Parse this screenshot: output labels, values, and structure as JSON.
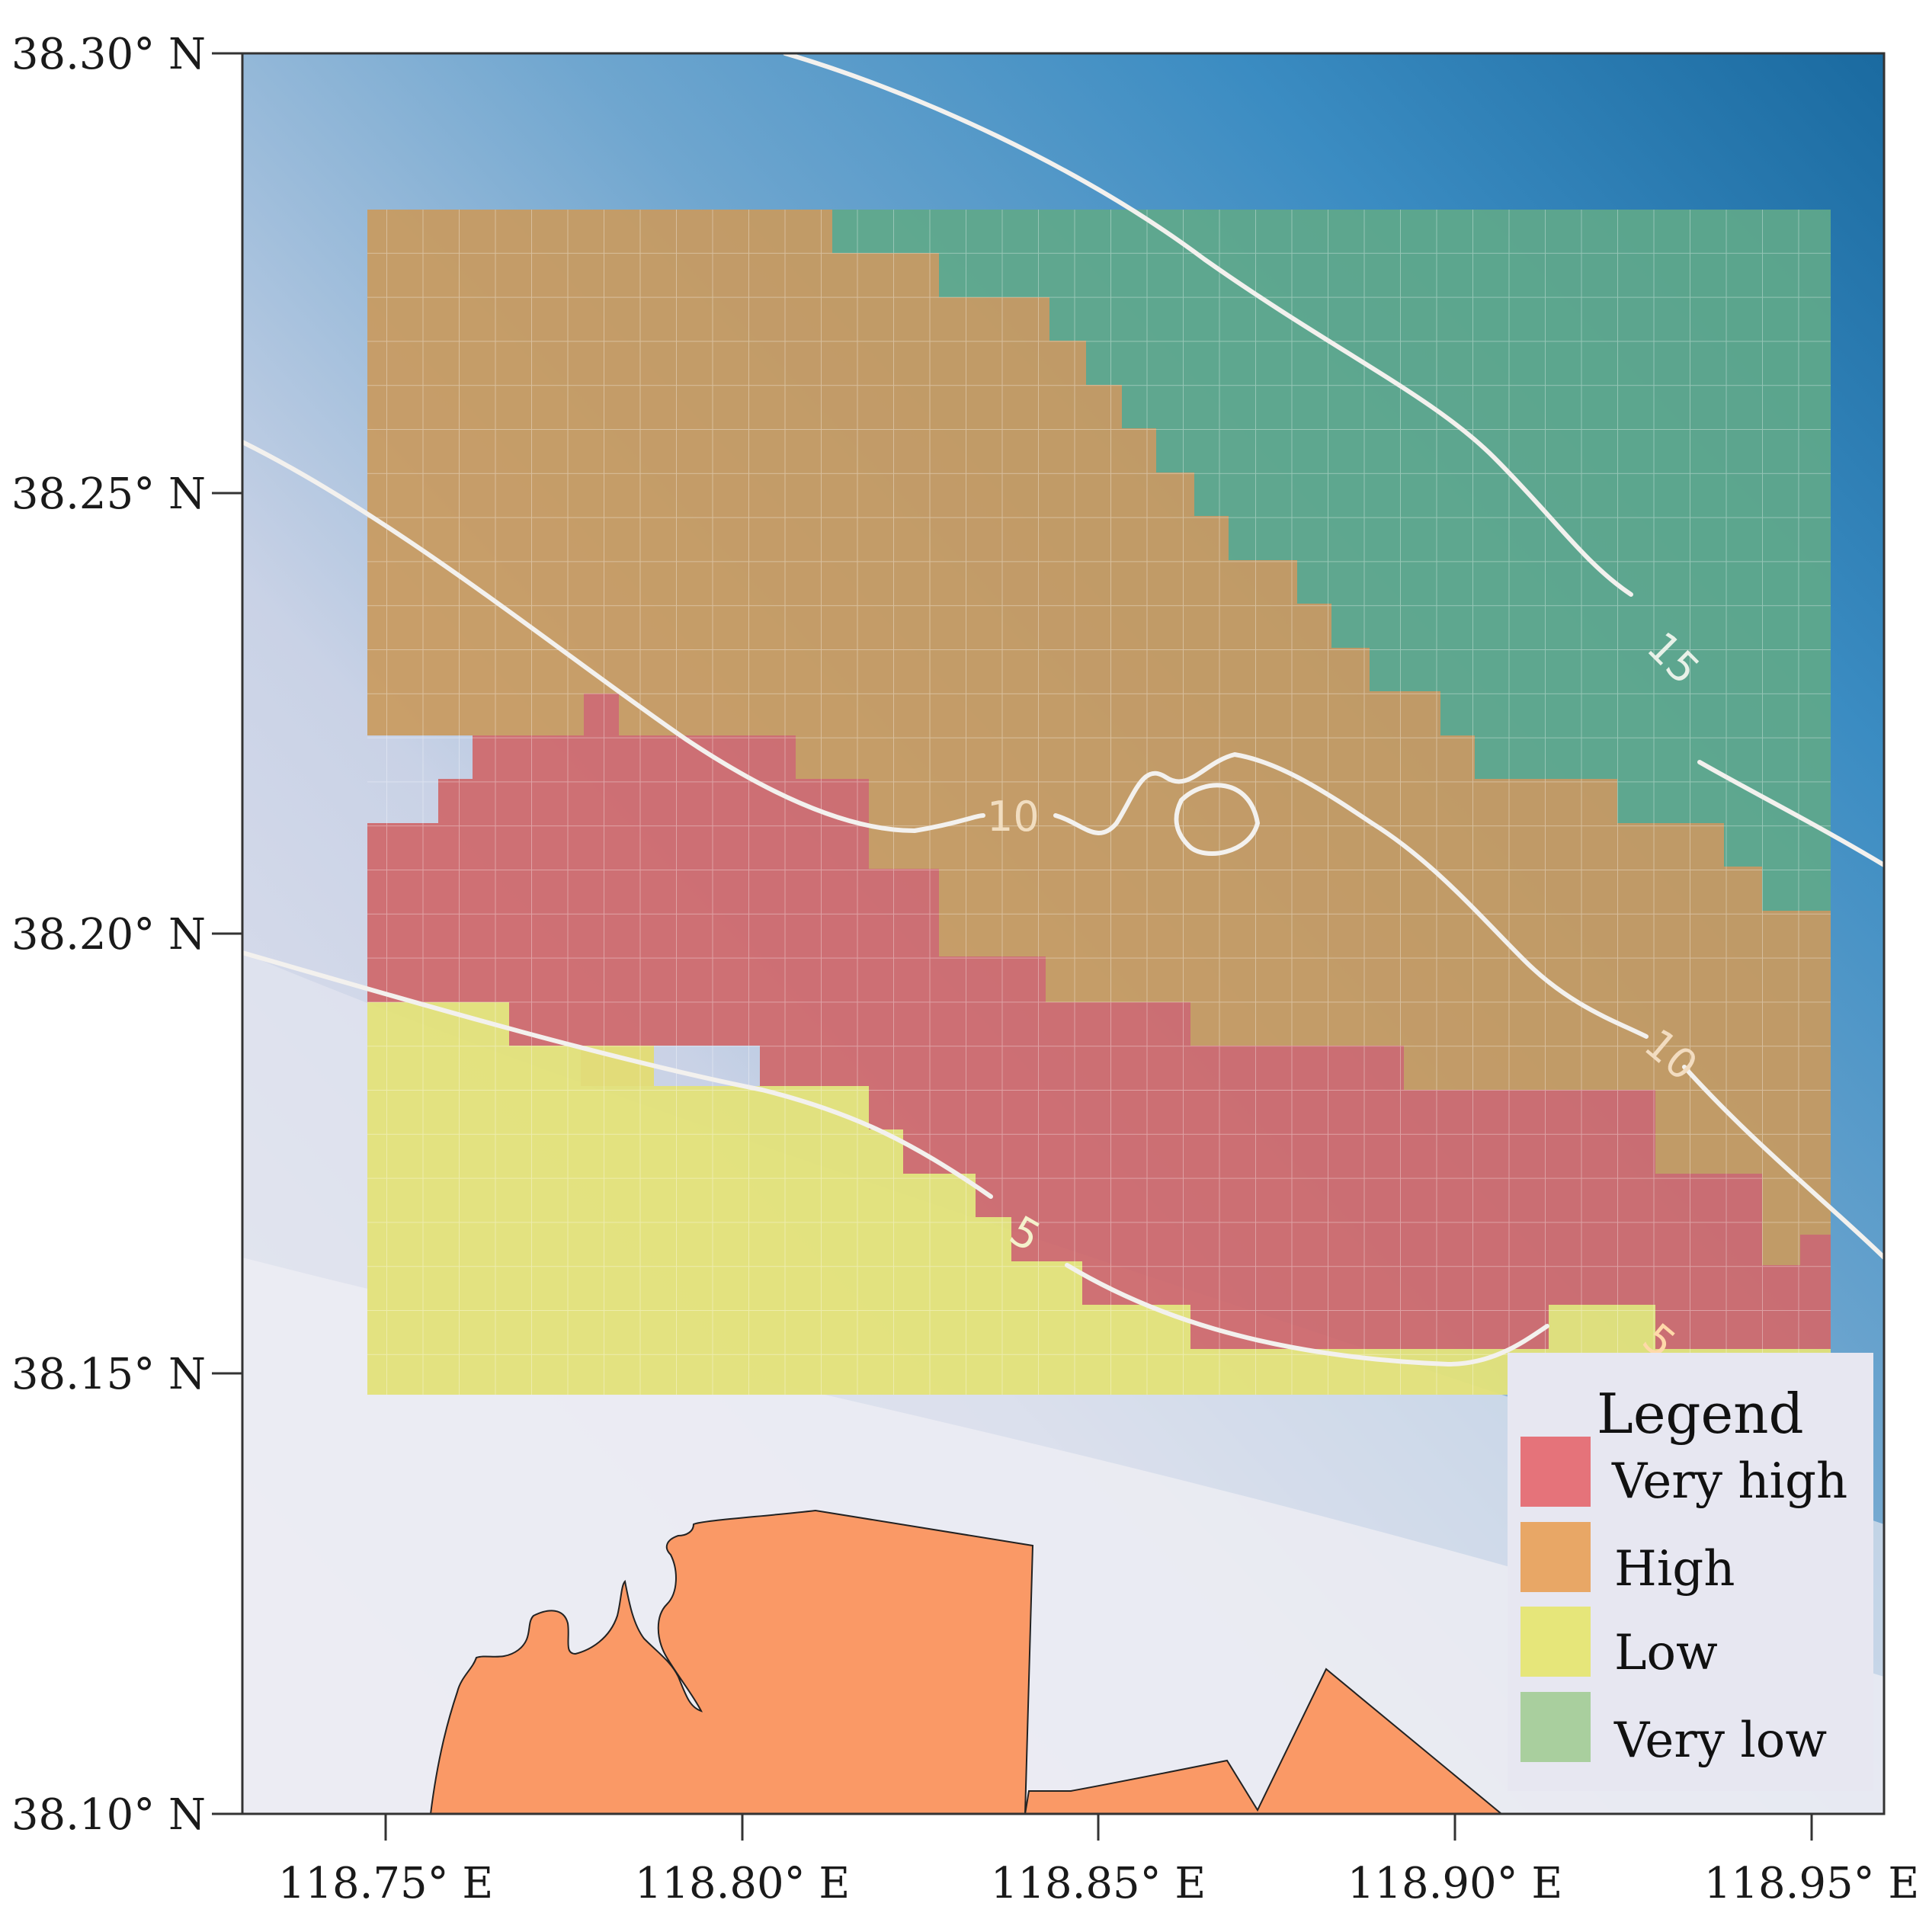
{
  "map": {
    "axes": {
      "lat_ticks": [
        "38.30° N",
        "38.25° N",
        "38.20° N",
        "38.15° N",
        "38.10° N"
      ],
      "lon_ticks": [
        "118.75° E",
        "118.80° E",
        "118.85° E",
        "118.90° E",
        "118.95° E"
      ]
    },
    "contour_labels": [
      "15",
      "10",
      "10",
      "5",
      "5"
    ],
    "legend": {
      "title": "Legend",
      "items": [
        {
          "label": "Very high",
          "color": "#e5737a"
        },
        {
          "label": "High",
          "color": "#e8a766"
        },
        {
          "label": "Low",
          "color": "#e6e67a"
        },
        {
          "label": "Very low",
          "color": "#a9cf9e"
        }
      ]
    },
    "colors": {
      "deep_water": "#1f6fa6",
      "shallow_water": "#e6e7f1",
      "land": "#fa9966",
      "contour": "#f2f2f2"
    }
  }
}
